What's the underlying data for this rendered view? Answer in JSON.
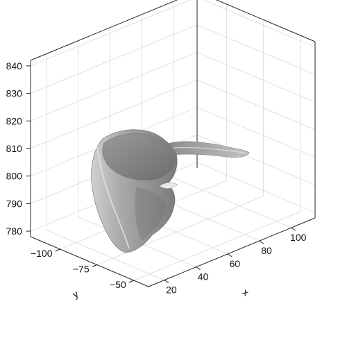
{
  "chart_data": {
    "type": "surface3d",
    "title": "",
    "xlabel": "x",
    "ylabel": "y",
    "zlabel": "",
    "xlim": [
      10,
      115
    ],
    "ylim": [
      -40,
      -120
    ],
    "zlim": [
      778,
      842
    ],
    "x_ticks": [
      20,
      40,
      60,
      80,
      100
    ],
    "x_tick_labels": [
      "20",
      "40",
      "60",
      "80",
      "100"
    ],
    "y_ticks": [
      -50,
      -75,
      -100
    ],
    "y_tick_labels": [
      "−50",
      "−75",
      "−100"
    ],
    "z_ticks": [
      780,
      790,
      800,
      810,
      820,
      830,
      840
    ],
    "z_tick_labels": [
      "780",
      "790",
      "800",
      "810",
      "820",
      "830",
      "840"
    ],
    "grid": true,
    "box": true,
    "surface_color": "#8c8c8c",
    "surface_highlight": "#d6d6d6",
    "surface_shadow": "#5e5e5e",
    "object": "grey 3D surface mesh of a curved, cup-shaped bone with a long thin projection extending toward higher x"
  }
}
